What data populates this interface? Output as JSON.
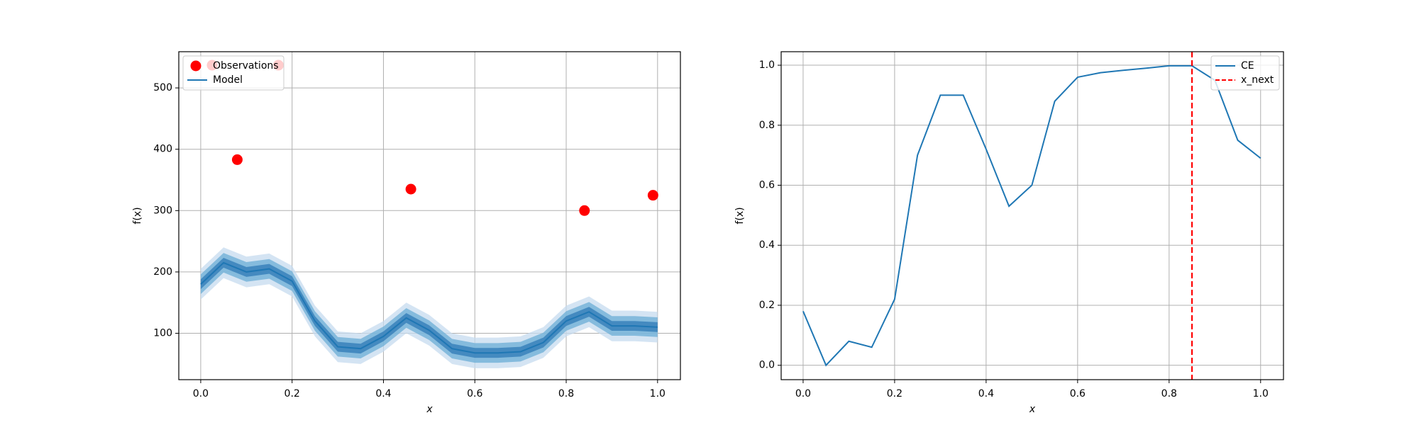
{
  "chart_data": [
    {
      "type": "line",
      "xlabel": "x",
      "ylabel": "f(x)",
      "grid": true,
      "legend": "upper left",
      "xlim": [
        -0.048,
        1.05
      ],
      "ylim": [
        24.4,
        559
      ],
      "xticks": [
        {
          "value": 0,
          "label": "0.0"
        },
        0.2,
        0.4,
        0.6,
        0.8,
        {
          "value": 1,
          "label": "1.0"
        }
      ],
      "yticks": [
        100,
        200,
        300,
        400,
        500
      ],
      "scatter": {
        "name": "Observations",
        "color": "#ff0000",
        "x": [
          0.025,
          0.08,
          0.17,
          0.46,
          0.84,
          0.99
        ],
        "values": [
          537,
          383,
          537,
          335,
          300,
          325
        ]
      },
      "x": [
        0,
        0.05,
        0.1,
        0.15,
        0.2,
        0.25,
        0.3,
        0.35,
        0.4,
        0.45,
        0.5,
        0.55,
        0.6,
        0.65,
        0.7,
        0.75,
        0.8,
        0.85,
        0.9,
        0.95,
        1.0
      ],
      "bands": [
        {
          "color": "#c6dbef",
          "lower": [
            155,
            190,
            175,
            180,
            160,
            95,
            53,
            50,
            70,
            100,
            80,
            50,
            43,
            43,
            45,
            60,
            95,
            110,
            87,
            87,
            85
          ],
          "upper": [
            205,
            240,
            225,
            230,
            210,
            145,
            103,
            100,
            120,
            150,
            130,
            100,
            93,
            93,
            95,
            110,
            145,
            160,
            137,
            137,
            135
          ]
        },
        {
          "color": "#6baed6",
          "lower": [
            164,
            199,
            184,
            189,
            169,
            104,
            62,
            59,
            79,
            109,
            89,
            59,
            52,
            52,
            54,
            69,
            104,
            119,
            96,
            96,
            94
          ],
          "upper": [
            196,
            231,
            216,
            221,
            201,
            136,
            94,
            91,
            111,
            141,
            121,
            91,
            84,
            84,
            86,
            101,
            136,
            151,
            128,
            128,
            126
          ]
        },
        {
          "color": "#2f7ab5",
          "lower": [
            172,
            207,
            192,
            197,
            177,
            112,
            70,
            67,
            87,
            117,
            97,
            67,
            60,
            60,
            62,
            77,
            112,
            127,
            104,
            104,
            102
          ],
          "upper": [
            188,
            223,
            208,
            213,
            193,
            128,
            86,
            83,
            103,
            133,
            113,
            83,
            76,
            76,
            78,
            93,
            128,
            143,
            120,
            120,
            118
          ]
        }
      ],
      "series": [
        {
          "name": "Model",
          "color": "#1f77b4",
          "values": [
            180,
            215,
            200,
            205,
            185,
            120,
            78,
            75,
            95,
            125,
            105,
            75,
            68,
            68,
            70,
            85,
            120,
            135,
            112,
            112,
            110
          ]
        }
      ]
    },
    {
      "type": "line",
      "xlabel": "x",
      "ylabel": "f(x)",
      "grid": true,
      "legend": "upper right",
      "xlim": [
        -0.048,
        1.05
      ],
      "ylim": [
        -0.048,
        1.045
      ],
      "xticks": [
        {
          "value": 0,
          "label": "0.0"
        },
        0.2,
        0.4,
        0.6,
        0.8,
        {
          "value": 1,
          "label": "1.0"
        }
      ],
      "yticks": [
        {
          "value": 0,
          "label": "0.0"
        },
        0.2,
        0.4,
        0.6,
        0.8,
        {
          "value": 1,
          "label": "1.0"
        }
      ],
      "x": [
        0,
        0.05,
        0.1,
        0.15,
        0.2,
        0.25,
        0.3,
        0.35,
        0.4,
        0.45,
        0.5,
        0.55,
        0.6,
        0.65,
        0.7,
        0.75,
        0.8,
        0.85,
        0.9,
        0.95,
        1.0
      ],
      "series": [
        {
          "name": "CE",
          "color": "#1f77b4",
          "values": [
            0.18,
            0.0,
            0.08,
            0.06,
            0.22,
            0.7,
            0.9,
            0.9,
            0.72,
            0.53,
            0.6,
            0.88,
            0.96,
            0.975,
            0.983,
            0.99,
            0.998,
            0.998,
            0.95,
            0.75,
            0.69
          ]
        }
      ],
      "vlines": [
        {
          "name": "x_next",
          "color": "#ff0000",
          "x": 0.85
        }
      ]
    }
  ]
}
